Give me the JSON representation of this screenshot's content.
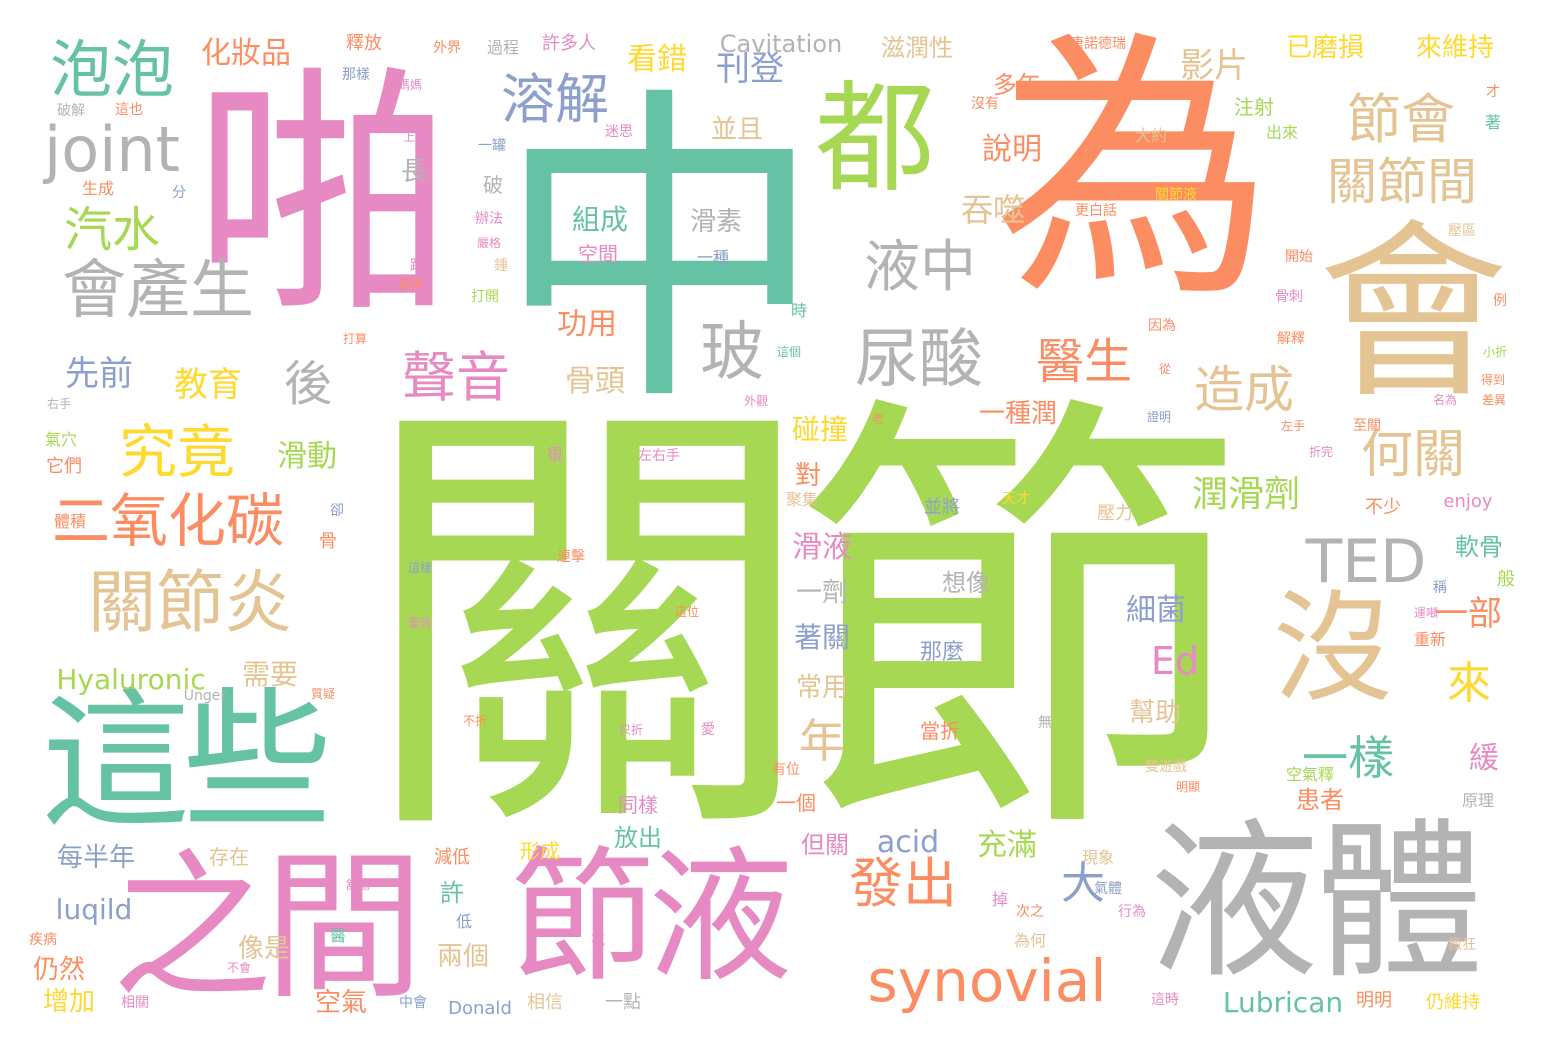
{
  "palette": {
    "green": "#a6d854",
    "teal": "#66c2a5",
    "orange": "#fc8d62",
    "pink": "#e78ac3",
    "tan": "#e5c494",
    "gray": "#b3b3b3",
    "blue": "#8da0cb",
    "yellow": "#ffd92f"
  },
  "words": [
    {
      "text": "關節",
      "color": "green"
    },
    {
      "text": "中",
      "color": "teal"
    },
    {
      "text": "為",
      "color": "orange"
    },
    {
      "text": "啪",
      "color": "pink"
    },
    {
      "text": "會",
      "color": "tan"
    },
    {
      "text": "液體",
      "color": "gray"
    },
    {
      "text": "之間",
      "color": "pink"
    },
    {
      "text": "節液",
      "color": "pink"
    },
    {
      "text": "這些",
      "color": "teal"
    },
    {
      "text": "都",
      "color": "green"
    },
    {
      "text": "沒",
      "color": "tan"
    },
    {
      "text": "泡泡",
      "color": "teal"
    },
    {
      "text": "joint",
      "color": "gray"
    },
    {
      "text": "會產生",
      "color": "gray"
    },
    {
      "text": "關節炎",
      "color": "tan"
    },
    {
      "text": "二氧化碳",
      "color": "orange"
    },
    {
      "text": "究竟",
      "color": "yellow"
    },
    {
      "text": "汽水",
      "color": "green"
    },
    {
      "text": "溶解",
      "color": "blue"
    },
    {
      "text": "尿酸",
      "color": "gray"
    },
    {
      "text": "液中",
      "color": "gray"
    },
    {
      "text": "玻",
      "color": "gray"
    },
    {
      "text": "聲音",
      "color": "pink"
    },
    {
      "text": "節會",
      "color": "tan"
    },
    {
      "text": "關節間",
      "color": "tan"
    },
    {
      "text": "TED",
      "color": "gray"
    },
    {
      "text": "synovial",
      "color": "orange"
    },
    {
      "text": "發出",
      "color": "orange"
    },
    {
      "text": "造成",
      "color": "tan"
    },
    {
      "text": "何關",
      "color": "tan"
    },
    {
      "text": "醫生",
      "color": "orange"
    },
    {
      "text": "一樣",
      "color": "teal"
    },
    {
      "text": "來",
      "color": "yellow"
    },
    {
      "text": "大",
      "color": "blue"
    },
    {
      "text": "年",
      "color": "tan"
    },
    {
      "text": "後",
      "color": "gray"
    },
    {
      "text": "教育",
      "color": "yellow"
    },
    {
      "text": "先前",
      "color": "blue"
    },
    {
      "text": "影片",
      "color": "tan"
    },
    {
      "text": "刊登",
      "color": "blue"
    },
    {
      "text": "說明",
      "color": "orange"
    },
    {
      "text": "吞噬",
      "color": "tan"
    },
    {
      "text": "潤滑劑",
      "color": "green"
    },
    {
      "text": "Ed",
      "color": "pink"
    },
    {
      "text": "Hyaluronic",
      "color": "green"
    },
    {
      "text": "Lubrican",
      "color": "teal"
    },
    {
      "text": "acid",
      "color": "blue"
    },
    {
      "text": "luqild",
      "color": "blue"
    },
    {
      "text": "Cavitation",
      "color": "gray"
    },
    {
      "text": "enjoy",
      "color": "pink"
    },
    {
      "text": "Donald",
      "color": "blue"
    },
    {
      "text": "Unger",
      "color": "gray"
    },
    {
      "text": "化妝品",
      "color": "orange"
    },
    {
      "text": "看錯",
      "color": "yellow"
    },
    {
      "text": "功用",
      "color": "orange"
    },
    {
      "text": "骨頭",
      "color": "tan"
    },
    {
      "text": "滑動",
      "color": "green"
    },
    {
      "text": "需要",
      "color": "tan"
    },
    {
      "text": "每半年",
      "color": "blue"
    },
    {
      "text": "仍然",
      "color": "orange"
    },
    {
      "text": "增加",
      "color": "yellow"
    },
    {
      "text": "空氣",
      "color": "orange"
    },
    {
      "text": "兩個",
      "color": "tan"
    },
    {
      "text": "像是",
      "color": "tan"
    },
    {
      "text": "許",
      "color": "teal"
    },
    {
      "text": "充滿",
      "color": "green"
    },
    {
      "text": "但關",
      "color": "pink"
    },
    {
      "text": "一個",
      "color": "orange"
    },
    {
      "text": "放出",
      "color": "teal"
    },
    {
      "text": "同樣",
      "color": "pink"
    },
    {
      "text": "形成",
      "color": "yellow"
    },
    {
      "text": "當折",
      "color": "orange"
    },
    {
      "text": "那麼",
      "color": "blue"
    },
    {
      "text": "想像",
      "color": "gray"
    },
    {
      "text": "碰撞",
      "color": "yellow"
    },
    {
      "text": "對",
      "color": "orange"
    },
    {
      "text": "滑液",
      "color": "pink"
    },
    {
      "text": "一劑",
      "color": "gray"
    },
    {
      "text": "著關",
      "color": "blue"
    },
    {
      "text": "常用",
      "color": "tan"
    },
    {
      "text": "細菌",
      "color": "blue"
    },
    {
      "text": "幫助",
      "color": "tan"
    },
    {
      "text": "緩",
      "color": "pink"
    },
    {
      "text": "患者",
      "color": "orange"
    },
    {
      "text": "軟骨",
      "color": "teal"
    },
    {
      "text": "一部",
      "color": "orange"
    },
    {
      "text": "組成",
      "color": "teal"
    },
    {
      "text": "空間",
      "color": "pink"
    },
    {
      "text": "滑素",
      "color": "gray"
    },
    {
      "text": "一種",
      "color": "blue"
    },
    {
      "text": "長",
      "color": "gray"
    },
    {
      "text": "破",
      "color": "gray"
    },
    {
      "text": "並且",
      "color": "tan"
    },
    {
      "text": "多年",
      "color": "orange"
    },
    {
      "text": "滋潤性",
      "color": "tan"
    },
    {
      "text": "已磨損",
      "color": "yellow"
    },
    {
      "text": "來維持",
      "color": "yellow"
    },
    {
      "text": "注射",
      "color": "green"
    },
    {
      "text": "出來",
      "color": "green"
    },
    {
      "text": "一種潤",
      "color": "orange"
    },
    {
      "text": "釋放",
      "color": "orange"
    },
    {
      "text": "外界",
      "color": "orange"
    },
    {
      "text": "過程",
      "color": "gray"
    },
    {
      "text": "許多人",
      "color": "pink"
    },
    {
      "text": "唐諾德瑞",
      "color": "orange"
    },
    {
      "text": "空氣釋",
      "color": "green"
    },
    {
      "text": "原理",
      "color": "gray"
    },
    {
      "text": "仍維持",
      "color": "yellow"
    },
    {
      "text": "明明",
      "color": "orange"
    },
    {
      "text": "這時",
      "color": "pink"
    },
    {
      "text": "雙遊戲",
      "color": "tan"
    },
    {
      "text": "壓力",
      "color": "tan"
    },
    {
      "text": "瘋狂",
      "color": "tan"
    },
    {
      "text": "氣體",
      "color": "blue"
    },
    {
      "text": "掉",
      "color": "pink"
    },
    {
      "text": "現象",
      "color": "tan"
    },
    {
      "text": "存在",
      "color": "tan"
    },
    {
      "text": "減低",
      "color": "orange"
    },
    {
      "text": "一點",
      "color": "gray"
    },
    {
      "text": "相信",
      "color": "tan"
    },
    {
      "text": "中會",
      "color": "blue"
    },
    {
      "text": "低",
      "color": "blue"
    },
    {
      "text": "花",
      "color": "pink"
    },
    {
      "text": "為何",
      "color": "tan"
    },
    {
      "text": "次之",
      "color": "orange"
    },
    {
      "text": "行為",
      "color": "pink"
    },
    {
      "text": "舒暢",
      "color": "pink"
    },
    {
      "text": "疾病",
      "color": "orange"
    },
    {
      "text": "不會",
      "color": "pink"
    },
    {
      "text": "相關",
      "color": "pink"
    },
    {
      "text": "體積",
      "color": "orange"
    },
    {
      "text": "卻",
      "color": "blue"
    },
    {
      "text": "氣穴",
      "color": "green"
    },
    {
      "text": "它們",
      "color": "orange"
    },
    {
      "text": "骨",
      "color": "orange"
    },
    {
      "text": "很",
      "color": "pink"
    },
    {
      "text": "左右手",
      "color": "pink"
    },
    {
      "text": "並將",
      "color": "blue"
    },
    {
      "text": "天才",
      "color": "yellow"
    },
    {
      "text": "聚集",
      "color": "tan"
    },
    {
      "text": "不少",
      "color": "orange"
    },
    {
      "text": "般",
      "color": "green"
    },
    {
      "text": "稱",
      "color": "blue"
    },
    {
      "text": "運噸",
      "color": "pink"
    },
    {
      "text": "重新",
      "color": "orange"
    },
    {
      "text": "連擊",
      "color": "orange"
    },
    {
      "text": "這樣",
      "color": "blue"
    },
    {
      "text": "這位",
      "color": "orange"
    },
    {
      "text": "警告",
      "color": "pink"
    },
    {
      "text": "質疑",
      "color": "orange"
    },
    {
      "text": "不折",
      "color": "orange"
    },
    {
      "text": "只折",
      "color": "pink"
    },
    {
      "text": "愛",
      "color": "pink"
    },
    {
      "text": "無",
      "color": "gray"
    },
    {
      "text": "有位",
      "color": "orange"
    },
    {
      "text": "獲得",
      "color": "green"
    },
    {
      "text": "明顯",
      "color": "orange"
    },
    {
      "text": "跑",
      "color": "pink"
    },
    {
      "text": "外觀",
      "color": "pink"
    },
    {
      "text": "這個",
      "color": "teal"
    },
    {
      "text": "時",
      "color": "teal"
    },
    {
      "text": "老",
      "color": "orange"
    },
    {
      "text": "證明",
      "color": "blue"
    },
    {
      "text": "從",
      "color": "orange"
    },
    {
      "text": "至關",
      "color": "orange"
    },
    {
      "text": "左手",
      "color": "orange"
    },
    {
      "text": "名為",
      "color": "pink"
    },
    {
      "text": "差異",
      "color": "orange"
    },
    {
      "text": "折完",
      "color": "pink"
    },
    {
      "text": "小折",
      "color": "green"
    },
    {
      "text": "得到",
      "color": "orange"
    },
    {
      "text": "例",
      "color": "orange"
    },
    {
      "text": "解釋",
      "color": "orange"
    },
    {
      "text": "因為",
      "color": "orange"
    },
    {
      "text": "骨刺",
      "color": "pink"
    },
    {
      "text": "壓區",
      "color": "tan"
    },
    {
      "text": "開始",
      "color": "orange"
    },
    {
      "text": "更白話",
      "color": "orange"
    },
    {
      "text": "關節液",
      "color": "yellow"
    },
    {
      "text": "大約",
      "color": "tan"
    },
    {
      "text": "著",
      "color": "teal"
    },
    {
      "text": "才",
      "color": "orange"
    },
    {
      "text": "沒有",
      "color": "orange"
    },
    {
      "text": "迷思",
      "color": "pink"
    },
    {
      "text": "一罐",
      "color": "blue"
    },
    {
      "text": "辦法",
      "color": "pink"
    },
    {
      "text": "嚴格",
      "color": "pink"
    },
    {
      "text": "鍾",
      "color": "tan"
    },
    {
      "text": "打開",
      "color": "green"
    },
    {
      "text": "打算",
      "color": "orange"
    },
    {
      "text": "右手",
      "color": "gray"
    },
    {
      "text": "上",
      "color": "pink"
    },
    {
      "text": "搞笑",
      "color": "orange"
    },
    {
      "text": "分",
      "color": "blue"
    },
    {
      "text": "生成",
      "color": "orange"
    },
    {
      "text": "這也",
      "color": "orange"
    },
    {
      "text": "破解",
      "color": "gray"
    },
    {
      "text": "那樣",
      "color": "blue"
    },
    {
      "text": "媽媽",
      "color": "pink"
    },
    {
      "text": "醫",
      "color": "teal"
    }
  ]
}
